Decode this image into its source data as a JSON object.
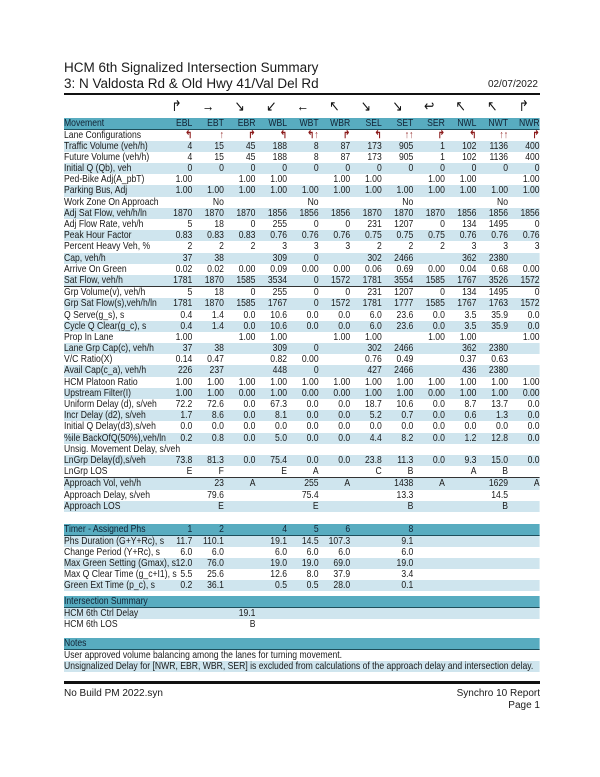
{
  "header": {
    "title": "HCM 6th Signalized Intersection Summary",
    "subtitle": "3: N Valdosta Rd & Old Hwy 41/Val Del Rd",
    "date": "02/07/2022"
  },
  "colors": {
    "header_band": "#58acc0",
    "row_shade": "#cfe5ee",
    "lane_arrow": "#8b1a1a"
  },
  "movement_icons": [
    "↱",
    "→",
    "↘",
    "↙",
    "←",
    "↖",
    "↘",
    "↘",
    "↩",
    "↖",
    "↖",
    "↱"
  ],
  "movement": {
    "label": "Movement",
    "columns": [
      "EBL",
      "EBT",
      "EBR",
      "WBL",
      "WBT",
      "WBR",
      "SEL",
      "SET",
      "SER",
      "NWL",
      "NWT",
      "NWR"
    ]
  },
  "section1": [
    {
      "label": "Lane Configurations",
      "lane": true,
      "values": [
        "↰",
        "↑",
        "↱",
        "↰",
        "↰↑",
        "↱",
        "↰",
        "↑↑",
        "↱",
        "↰",
        "↑↑",
        "↱"
      ]
    },
    {
      "label": "Traffic Volume (veh/h)",
      "values": [
        "4",
        "15",
        "45",
        "188",
        "8",
        "87",
        "173",
        "905",
        "1",
        "102",
        "1136",
        "400"
      ]
    },
    {
      "label": "Future Volume (veh/h)",
      "values": [
        "4",
        "15",
        "45",
        "188",
        "8",
        "87",
        "173",
        "905",
        "1",
        "102",
        "1136",
        "400"
      ]
    },
    {
      "label": "Initial Q (Qb), veh",
      "values": [
        "0",
        "0",
        "0",
        "0",
        "0",
        "0",
        "0",
        "0",
        "0",
        "0",
        "0",
        "0"
      ]
    },
    {
      "label": "Ped-Bike Adj(A_pbT)",
      "values": [
        "1.00",
        "",
        "1.00",
        "1.00",
        "",
        "1.00",
        "1.00",
        "",
        "1.00",
        "1.00",
        "",
        "1.00"
      ]
    },
    {
      "label": "Parking Bus, Adj",
      "values": [
        "1.00",
        "1.00",
        "1.00",
        "1.00",
        "1.00",
        "1.00",
        "1.00",
        "1.00",
        "1.00",
        "1.00",
        "1.00",
        "1.00"
      ]
    },
    {
      "label": "Work Zone On Approach",
      "values": [
        "",
        "No",
        "",
        "",
        "No",
        "",
        "",
        "No",
        "",
        "",
        "No",
        ""
      ]
    },
    {
      "label": "Adj Sat Flow, veh/h/ln",
      "values": [
        "1870",
        "1870",
        "1870",
        "1856",
        "1856",
        "1856",
        "1870",
        "1870",
        "1870",
        "1856",
        "1856",
        "1856"
      ]
    },
    {
      "label": "Adj Flow Rate, veh/h",
      "values": [
        "5",
        "18",
        "0",
        "255",
        "0",
        "0",
        "231",
        "1207",
        "0",
        "134",
        "1495",
        "0"
      ]
    },
    {
      "label": "Peak Hour Factor",
      "values": [
        "0.83",
        "0.83",
        "0.83",
        "0.76",
        "0.76",
        "0.76",
        "0.75",
        "0.75",
        "0.75",
        "0.76",
        "0.76",
        "0.76"
      ]
    },
    {
      "label": "Percent Heavy Veh, %",
      "values": [
        "2",
        "2",
        "2",
        "3",
        "3",
        "3",
        "2",
        "2",
        "2",
        "3",
        "3",
        "3"
      ]
    },
    {
      "label": "Cap, veh/h",
      "values": [
        "37",
        "38",
        "",
        "309",
        "0",
        "",
        "302",
        "2466",
        "",
        "362",
        "2380",
        ""
      ]
    },
    {
      "label": "Arrive On Green",
      "values": [
        "0.02",
        "0.02",
        "0.00",
        "0.09",
        "0.00",
        "0.00",
        "0.06",
        "0.69",
        "0.00",
        "0.04",
        "0.68",
        "0.00"
      ]
    },
    {
      "label": "Sat Flow, veh/h",
      "values": [
        "1781",
        "1870",
        "1585",
        "3534",
        "0",
        "1572",
        "1781",
        "3554",
        "1585",
        "1767",
        "3526",
        "1572"
      ]
    }
  ],
  "section2": [
    {
      "label": "Grp Volume(v), veh/h",
      "values": [
        "5",
        "18",
        "0",
        "255",
        "0",
        "0",
        "231",
        "1207",
        "0",
        "134",
        "1495",
        "0"
      ]
    },
    {
      "label": "Grp Sat Flow(s),veh/h/ln",
      "values": [
        "1781",
        "1870",
        "1585",
        "1767",
        "0",
        "1572",
        "1781",
        "1777",
        "1585",
        "1767",
        "1763",
        "1572"
      ]
    },
    {
      "label": "Q Serve(g_s), s",
      "values": [
        "0.4",
        "1.4",
        "0.0",
        "10.6",
        "0.0",
        "0.0",
        "6.0",
        "23.6",
        "0.0",
        "3.5",
        "35.9",
        "0.0"
      ]
    },
    {
      "label": "Cycle Q Clear(g_c), s",
      "values": [
        "0.4",
        "1.4",
        "0.0",
        "10.6",
        "0.0",
        "0.0",
        "6.0",
        "23.6",
        "0.0",
        "3.5",
        "35.9",
        "0.0"
      ]
    },
    {
      "label": "Prop In Lane",
      "values": [
        "1.00",
        "",
        "1.00",
        "1.00",
        "",
        "1.00",
        "1.00",
        "",
        "1.00",
        "1.00",
        "",
        "1.00"
      ]
    },
    {
      "label": "Lane Grp Cap(c), veh/h",
      "values": [
        "37",
        "38",
        "",
        "309",
        "0",
        "",
        "302",
        "2466",
        "",
        "362",
        "2380",
        ""
      ]
    },
    {
      "label": "V/C Ratio(X)",
      "values": [
        "0.14",
        "0.47",
        "",
        "0.82",
        "0.00",
        "",
        "0.76",
        "0.49",
        "",
        "0.37",
        "0.63",
        ""
      ]
    },
    {
      "label": "Avail Cap(c_a), veh/h",
      "values": [
        "226",
        "237",
        "",
        "448",
        "0",
        "",
        "427",
        "2466",
        "",
        "436",
        "2380",
        ""
      ]
    },
    {
      "label": "HCM Platoon Ratio",
      "values": [
        "1.00",
        "1.00",
        "1.00",
        "1.00",
        "1.00",
        "1.00",
        "1.00",
        "1.00",
        "1.00",
        "1.00",
        "1.00",
        "1.00"
      ]
    },
    {
      "label": "Upstream Filter(I)",
      "values": [
        "1.00",
        "1.00",
        "0.00",
        "1.00",
        "0.00",
        "0.00",
        "1.00",
        "1.00",
        "0.00",
        "1.00",
        "1.00",
        "0.00"
      ]
    },
    {
      "label": "Uniform Delay (d), s/veh",
      "values": [
        "72.2",
        "72.6",
        "0.0",
        "67.3",
        "0.0",
        "0.0",
        "18.7",
        "10.6",
        "0.0",
        "8.7",
        "13.7",
        "0.0"
      ]
    },
    {
      "label": "Incr Delay (d2), s/veh",
      "values": [
        "1.7",
        "8.6",
        "0.0",
        "8.1",
        "0.0",
        "0.0",
        "5.2",
        "0.7",
        "0.0",
        "0.6",
        "1.3",
        "0.0"
      ]
    },
    {
      "label": "Initial Q Delay(d3),s/veh",
      "values": [
        "0.0",
        "0.0",
        "0.0",
        "0.0",
        "0.0",
        "0.0",
        "0.0",
        "0.0",
        "0.0",
        "0.0",
        "0.0",
        "0.0"
      ]
    },
    {
      "label": "%ile BackOfQ(50%),veh/ln",
      "values": [
        "0.2",
        "0.8",
        "0.0",
        "5.0",
        "0.0",
        "0.0",
        "4.4",
        "8.2",
        "0.0",
        "1.2",
        "12.8",
        "0.0"
      ]
    },
    {
      "label": "Unsig. Movement Delay, s/veh",
      "values": [
        "",
        "",
        "",
        "",
        "",
        "",
        "",
        "",
        "",
        "",
        "",
        ""
      ]
    },
    {
      "label": "LnGrp Delay(d),s/veh",
      "values": [
        "73.8",
        "81.3",
        "0.0",
        "75.4",
        "0.0",
        "0.0",
        "23.8",
        "11.3",
        "0.0",
        "9.3",
        "15.0",
        "0.0"
      ]
    },
    {
      "label": "LnGrp LOS",
      "values": [
        "E",
        "F",
        "",
        "E",
        "A",
        "",
        "C",
        "B",
        "",
        "A",
        "B",
        ""
      ]
    }
  ],
  "section3": [
    {
      "label": "Approach Vol, veh/h",
      "values": [
        "",
        "23",
        "A",
        "",
        "255",
        "A",
        "",
        "1438",
        "A",
        "",
        "1629",
        "A"
      ]
    },
    {
      "label": "Approach Delay, s/veh",
      "values": [
        "",
        "79.6",
        "",
        "",
        "75.4",
        "",
        "",
        "13.3",
        "",
        "",
        "14.5",
        ""
      ]
    },
    {
      "label": "Approach LOS",
      "values": [
        "",
        "E",
        "",
        "",
        "E",
        "",
        "",
        "B",
        "",
        "",
        "B",
        ""
      ]
    }
  ],
  "timer": {
    "label": "Timer - Assigned Phs",
    "phases": [
      "1",
      "2",
      "",
      "4",
      "5",
      "6",
      "",
      "8",
      "",
      "",
      "",
      ""
    ],
    "rows": [
      {
        "label": "Phs Duration (G+Y+Rc), s",
        "values": [
          "11.7",
          "110.1",
          "",
          "19.1",
          "14.5",
          "107.3",
          "",
          "9.1",
          "",
          "",
          "",
          ""
        ]
      },
      {
        "label": "Change Period (Y+Rc), s",
        "values": [
          "6.0",
          "6.0",
          "",
          "6.0",
          "6.0",
          "6.0",
          "",
          "6.0",
          "",
          "",
          "",
          ""
        ]
      },
      {
        "label": "Max Green Setting (Gmax), s",
        "values": [
          "12.0",
          "76.0",
          "",
          "19.0",
          "19.0",
          "69.0",
          "",
          "19.0",
          "",
          "",
          "",
          ""
        ]
      },
      {
        "label": "Max Q Clear Time (g_c+I1), s",
        "values": [
          "5.5",
          "25.6",
          "",
          "12.6",
          "8.0",
          "37.9",
          "",
          "3.4",
          "",
          "",
          "",
          ""
        ]
      },
      {
        "label": "Green Ext Time (p_c), s",
        "values": [
          "0.2",
          "36.1",
          "",
          "0.5",
          "0.5",
          "28.0",
          "",
          "0.1",
          "",
          "",
          "",
          ""
        ]
      }
    ]
  },
  "intersection_summary": {
    "label": "Intersection Summary",
    "rows": [
      {
        "label": "HCM 6th Ctrl Delay",
        "values": [
          "",
          "",
          "19.1",
          "",
          "",
          "",
          "",
          "",
          "",
          "",
          "",
          ""
        ]
      },
      {
        "label": "HCM 6th LOS",
        "values": [
          "",
          "",
          "B",
          "",
          "",
          "",
          "",
          "",
          "",
          "",
          "",
          ""
        ]
      }
    ]
  },
  "notes": {
    "label": "Notes",
    "lines": [
      "User approved volume balancing among the lanes for turning movement.",
      "Unsignalized Delay for [NWR, EBR, WBR, SER] is excluded from calculations of the approach delay and intersection delay."
    ]
  },
  "footer": {
    "file": "No Build PM 2022.syn",
    "report": "Synchro 10 Report",
    "page": "Page 1"
  }
}
